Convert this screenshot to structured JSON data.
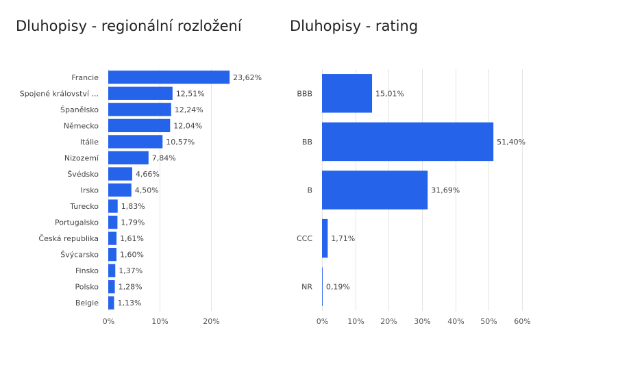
{
  "chart_data": [
    {
      "type": "bar",
      "orientation": "horizontal",
      "title": "Dluhopisy - regionální rozložení",
      "categories": [
        "Francie",
        "Spojené království ...",
        "Španělsko",
        "Německo",
        "Itálie",
        "Nizozemí",
        "Švédsko",
        "Irsko",
        "Turecko",
        "Portugalsko",
        "Česká republika",
        "Švýcarsko",
        "Finsko",
        "Polsko",
        "Belgie"
      ],
      "values": [
        23.62,
        12.51,
        12.24,
        12.04,
        10.57,
        7.84,
        4.66,
        4.5,
        1.83,
        1.79,
        1.61,
        1.6,
        1.37,
        1.28,
        1.13
      ],
      "labels": [
        "23,62%",
        "12,51%",
        "12,24%",
        "12,04%",
        "10,57%",
        "7,84%",
        "4,66%",
        "4,50%",
        "1,83%",
        "1,79%",
        "1,61%",
        "1,60%",
        "1,37%",
        "1,28%",
        "1,13%"
      ],
      "xlim": [
        0,
        30
      ],
      "xticks": [
        0,
        10,
        20
      ],
      "xtick_labels": [
        "0%",
        "10%",
        "20%"
      ],
      "grid": true,
      "color": "#2563eb"
    },
    {
      "type": "bar",
      "orientation": "horizontal",
      "title": "Dluhopisy - rating",
      "categories": [
        "BBB",
        "BB",
        "B",
        "CCC",
        "NR"
      ],
      "values": [
        15.01,
        51.4,
        31.69,
        1.71,
        0.19
      ],
      "labels": [
        "15,01%",
        "51,40%",
        "31,69%",
        "1,71%",
        "0,19%"
      ],
      "xlim": [
        0,
        60
      ],
      "xticks": [
        0,
        10,
        20,
        30,
        40,
        50,
        60
      ],
      "xtick_labels": [
        "0%",
        "10%",
        "20%",
        "30%",
        "40%",
        "50%",
        "60%"
      ],
      "grid": true,
      "color": "#2563eb"
    }
  ]
}
